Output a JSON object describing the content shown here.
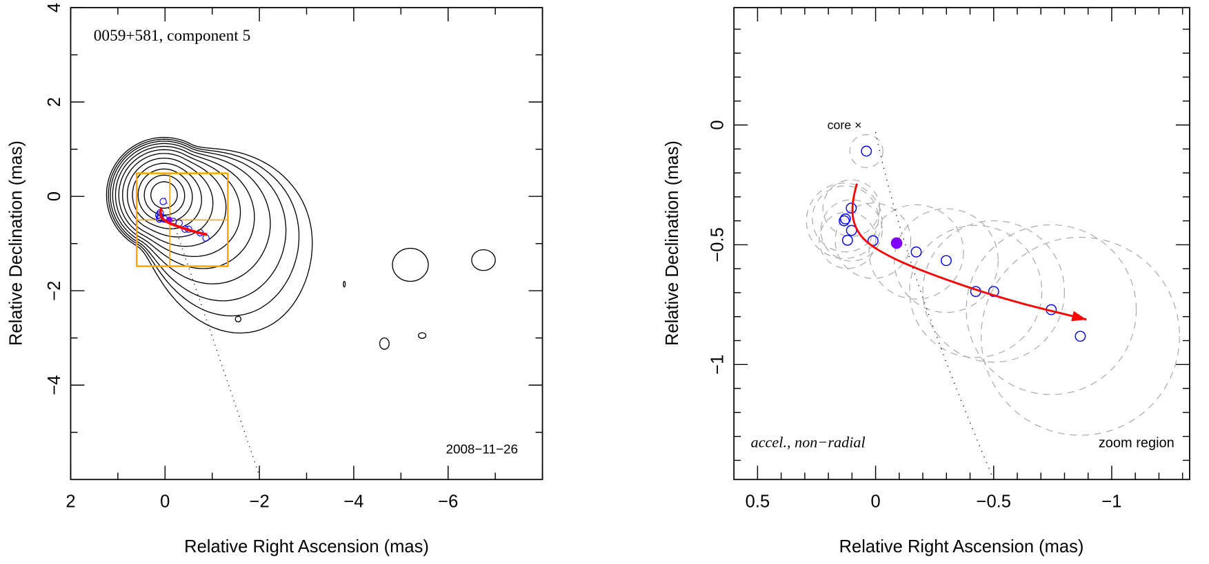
{
  "chart_data": [
    {
      "type": "scatter",
      "panel": "left",
      "title": "0059+581, component 5",
      "epoch_label": "2008−11−26",
      "xlabel": "Relative Right Ascension (mas)",
      "ylabel": "Relative Declination (mas)",
      "xlim": [
        2,
        -8
      ],
      "ylim": [
        -6,
        4
      ],
      "xticks": [
        {
          "v": 2,
          "label": "2"
        },
        {
          "v": 0,
          "label": "0"
        },
        {
          "v": -2,
          "label": "−2"
        },
        {
          "v": -4,
          "label": "−4"
        },
        {
          "v": -6,
          "label": "−6"
        }
      ],
      "yticks": [
        {
          "v": 4,
          "label": "4"
        },
        {
          "v": 2,
          "label": "2"
        },
        {
          "v": 0,
          "label": "0"
        },
        {
          "v": -2,
          "label": "−2"
        },
        {
          "v": -4,
          "label": "−4"
        }
      ],
      "x_minor_step": 1,
      "y_minor_step": 1,
      "contour_levels": 12,
      "isolated_components": [
        {
          "ra": -5.2,
          "dec": -1.45,
          "rx": 0.38,
          "ry": 0.35
        },
        {
          "ra": -6.75,
          "dec": -1.35,
          "rx": 0.25,
          "ry": 0.22
        },
        {
          "ra": -4.65,
          "dec": -3.12,
          "rx": 0.1,
          "ry": 0.12
        },
        {
          "ra": -5.45,
          "dec": -2.95,
          "rx": 0.08,
          "ry": 0.06
        },
        {
          "ra": -1.55,
          "dec": -2.6,
          "rx": 0.06,
          "ry": 0.06
        },
        {
          "ra": -3.8,
          "dec": -1.86,
          "rx": 0.02,
          "ry": 0.06
        }
      ],
      "zoom_box": {
        "ra": [
          0.6,
          -1.33
        ],
        "dec": [
          0.49,
          -1.48
        ],
        "cross_ra": -0.1,
        "cross_dec": -0.5
      },
      "colors": {
        "contour": "#000000",
        "box": "#ffa500",
        "points": "#0000ff",
        "fit": "#ff0000",
        "reference": "#8000ff"
      }
    },
    {
      "type": "scatter",
      "panel": "right",
      "xlabel": "Relative Right Ascension (mas)",
      "ylabel": "Relative Declination (mas)",
      "xlim": [
        0.6,
        -1.33
      ],
      "ylim": [
        -1.48,
        0.49
      ],
      "xticks": [
        {
          "v": 0.5,
          "label": "0.5"
        },
        {
          "v": 0,
          "label": "0"
        },
        {
          "v": -0.5,
          "label": "−0.5"
        },
        {
          "v": -1,
          "label": "−1"
        }
      ],
      "yticks": [
        {
          "v": 0,
          "label": "0"
        },
        {
          "v": -0.5,
          "label": "−0.5"
        },
        {
          "v": -1,
          "label": "−1"
        }
      ],
      "x_minor_step": 0.1,
      "y_minor_step": 0.1,
      "core_label": "core ×",
      "fit_label": "accel., non−radial",
      "region_label": "zoom region",
      "positions": [
        {
          "ra": 0.039,
          "dec": -0.109,
          "err": 0.07
        },
        {
          "ra": 0.103,
          "dec": -0.347,
          "err": 0.12
        },
        {
          "ra": 0.128,
          "dec": -0.392,
          "err": 0.14
        },
        {
          "ra": 0.133,
          "dec": -0.4,
          "err": 0.16
        },
        {
          "ra": 0.102,
          "dec": -0.44,
          "err": 0.13
        },
        {
          "ra": 0.119,
          "dec": -0.481,
          "err": 0.12
        },
        {
          "ra": 0.011,
          "dec": -0.483,
          "err": 0.16
        },
        {
          "ra": -0.172,
          "dec": -0.53,
          "err": 0.2
        },
        {
          "ra": -0.299,
          "dec": -0.566,
          "err": 0.22
        },
        {
          "ra": -0.424,
          "dec": -0.695,
          "err": 0.28
        },
        {
          "ra": -0.5,
          "dec": -0.695,
          "err": 0.3
        },
        {
          "ra": -0.744,
          "dec": -0.771,
          "err": 0.36
        },
        {
          "ra": -0.867,
          "dec": -0.882,
          "err": 0.42
        }
      ],
      "reference_position": {
        "ra": -0.089,
        "dec": -0.493
      },
      "fit_track": [
        {
          "ra": 0.079,
          "dec": -0.245
        },
        {
          "ra": 0.107,
          "dec": -0.338
        },
        {
          "ra": 0.081,
          "dec": -0.452
        },
        {
          "ra": -0.014,
          "dec": -0.529
        },
        {
          "ra": -0.205,
          "dec": -0.614
        },
        {
          "ra": -0.548,
          "dec": -0.729
        },
        {
          "ra": -0.893,
          "dec": -0.812
        }
      ],
      "radial_direction": [
        {
          "ra": 0,
          "dec": -0.03
        },
        {
          "ra": -0.5,
          "dec": -1.48
        }
      ]
    }
  ]
}
